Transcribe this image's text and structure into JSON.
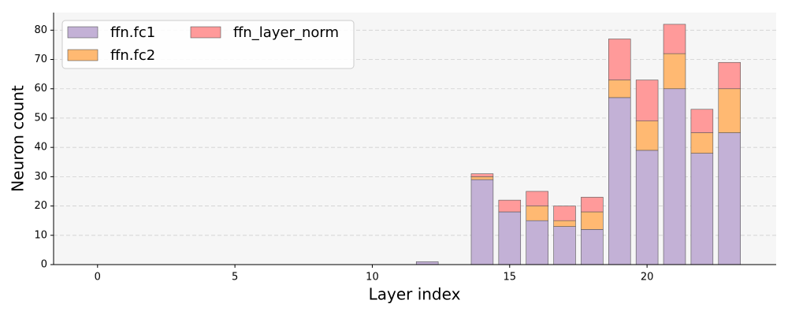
{
  "chart_data": {
    "type": "bar",
    "stacked": true,
    "x_label": "Layer index",
    "y_label": "Neuron count",
    "x": [
      0,
      1,
      2,
      3,
      4,
      5,
      6,
      7,
      8,
      9,
      10,
      11,
      12,
      13,
      14,
      15,
      16,
      17,
      18,
      19,
      20,
      21,
      22,
      23
    ],
    "series": [
      {
        "name": "ffn.fc1",
        "color": "#c3b1d6",
        "values": [
          0,
          0,
          0,
          0,
          0,
          0,
          0,
          0,
          0,
          0,
          0,
          0,
          1,
          0,
          29,
          18,
          15,
          13,
          12,
          57,
          39,
          60,
          38,
          45
        ]
      },
      {
        "name": "ffn.fc2",
        "color": "#ffb972",
        "values": [
          0,
          0,
          0,
          0,
          0,
          0,
          0,
          0,
          0,
          0,
          0,
          0,
          0,
          0,
          1,
          0,
          5,
          2,
          6,
          6,
          10,
          12,
          7,
          15
        ]
      },
      {
        "name": "ffn_layer_norm",
        "color": "#ff9a9a",
        "values": [
          0,
          0,
          0,
          0,
          0,
          0,
          0,
          0,
          0,
          0,
          0,
          0,
          0,
          0,
          1,
          4,
          5,
          5,
          5,
          14,
          14,
          10,
          8,
          9
        ]
      }
    ],
    "xlim": [
      -1.6,
      24.7
    ],
    "xticks": [
      0,
      5,
      10,
      15,
      20
    ],
    "ylim": [
      0,
      86
    ],
    "yticks": [
      0,
      10,
      20,
      30,
      40,
      50,
      60,
      70,
      80
    ],
    "grid": true,
    "legend": "upper left",
    "bar_width": 0.8
  }
}
